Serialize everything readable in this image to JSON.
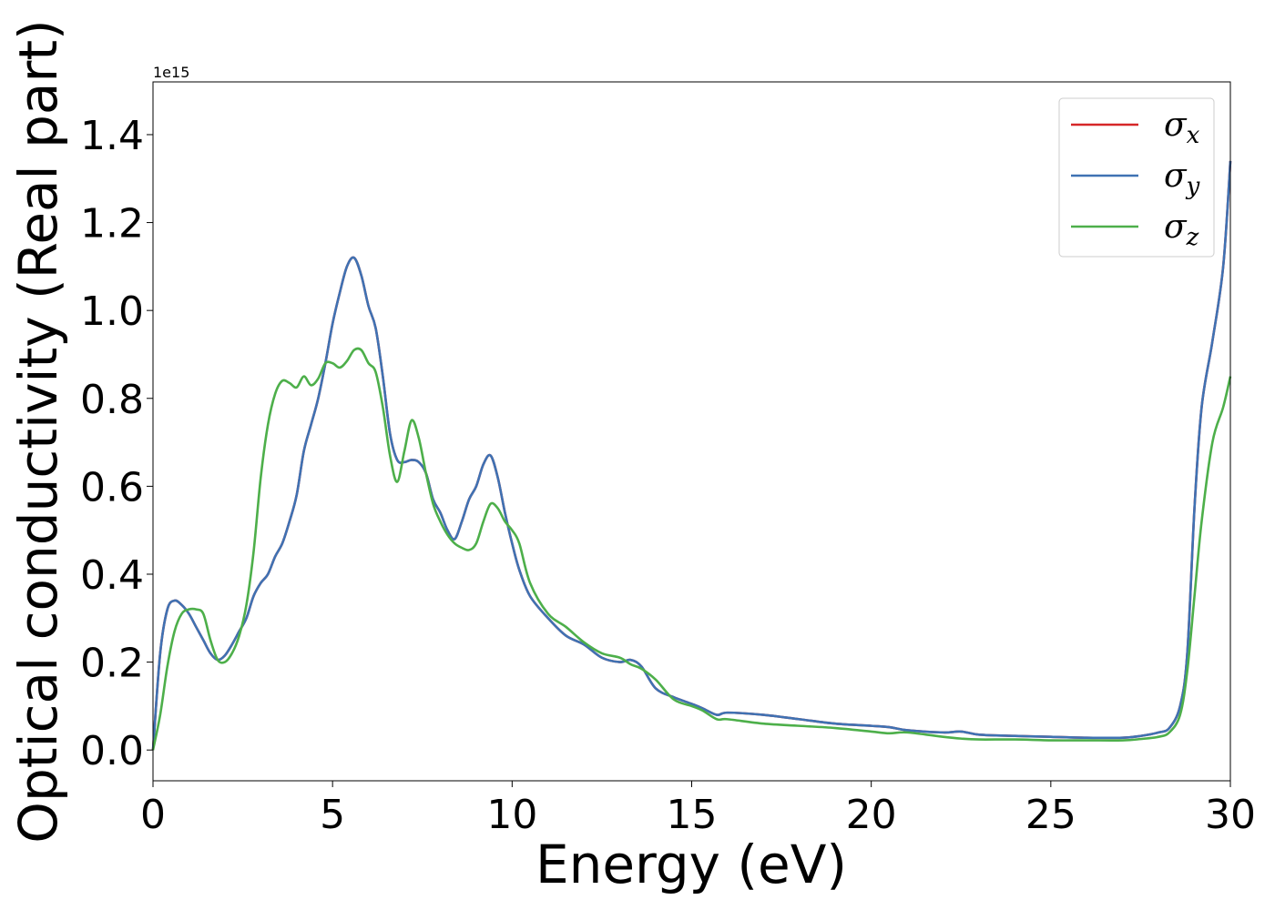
{
  "chart_data": {
    "type": "line",
    "xlabel": "Energy (eV)",
    "ylabel": "Optical conductivity (Real part)",
    "y_offset_label": "1e15",
    "xlim": [
      0,
      30
    ],
    "ylim": [
      -0.07,
      1.52
    ],
    "x_ticks": [
      0,
      5,
      10,
      15,
      20,
      25,
      30
    ],
    "y_ticks": [
      0.0,
      0.2,
      0.4,
      0.6,
      0.8,
      1.0,
      1.2,
      1.4
    ],
    "x_tick_labels": [
      "0",
      "5",
      "10",
      "15",
      "20",
      "25",
      "30"
    ],
    "y_tick_labels": [
      "0.0",
      "0.2",
      "0.4",
      "0.6",
      "0.8",
      "1.0",
      "1.2",
      "1.4"
    ],
    "grid": false,
    "legend_position": "top-right",
    "series": [
      {
        "name": "σx",
        "label_base": "σ",
        "label_sub": "x",
        "color": "#d62728",
        "x": [
          0,
          0.2,
          0.4,
          0.6,
          0.8,
          1.0,
          1.2,
          1.4,
          1.6,
          1.8,
          2.0,
          2.2,
          2.4,
          2.6,
          2.8,
          3.0,
          3.2,
          3.4,
          3.6,
          3.8,
          4.0,
          4.2,
          4.4,
          4.6,
          4.8,
          5.0,
          5.2,
          5.4,
          5.6,
          5.8,
          6.0,
          6.2,
          6.4,
          6.6,
          6.8,
          7.0,
          7.2,
          7.4,
          7.6,
          7.8,
          8.0,
          8.2,
          8.4,
          8.6,
          8.8,
          9.0,
          9.2,
          9.4,
          9.6,
          9.8,
          10.0,
          10.2,
          10.5,
          11.0,
          11.5,
          12.0,
          12.5,
          13.0,
          13.3,
          13.6,
          14.0,
          14.5,
          15.0,
          15.3,
          15.7,
          16.0,
          17.0,
          18.0,
          19.0,
          20.0,
          20.5,
          21.0,
          22.0,
          22.5,
          23.0,
          24.0,
          25.0,
          26.0,
          27.0,
          27.5,
          28.0,
          28.3,
          28.6,
          28.8,
          29.0,
          29.2,
          29.5,
          29.8,
          30.0
        ],
        "y": [
          0.0,
          0.22,
          0.32,
          0.34,
          0.33,
          0.31,
          0.28,
          0.25,
          0.22,
          0.205,
          0.215,
          0.24,
          0.27,
          0.3,
          0.35,
          0.38,
          0.4,
          0.44,
          0.47,
          0.52,
          0.58,
          0.68,
          0.74,
          0.8,
          0.88,
          0.97,
          1.04,
          1.1,
          1.12,
          1.08,
          1.01,
          0.96,
          0.85,
          0.72,
          0.66,
          0.655,
          0.66,
          0.655,
          0.63,
          0.57,
          0.54,
          0.5,
          0.48,
          0.52,
          0.57,
          0.6,
          0.65,
          0.67,
          0.62,
          0.54,
          0.47,
          0.41,
          0.35,
          0.3,
          0.26,
          0.24,
          0.21,
          0.2,
          0.205,
          0.19,
          0.14,
          0.12,
          0.105,
          0.095,
          0.08,
          0.085,
          0.08,
          0.07,
          0.06,
          0.055,
          0.052,
          0.045,
          0.04,
          0.042,
          0.035,
          0.032,
          0.03,
          0.028,
          0.028,
          0.032,
          0.04,
          0.05,
          0.1,
          0.22,
          0.55,
          0.78,
          0.93,
          1.1,
          1.34
        ]
      },
      {
        "name": "σy",
        "label_base": "σ",
        "label_sub": "y",
        "color": "#3f72b3",
        "x": [
          0,
          0.2,
          0.4,
          0.6,
          0.8,
          1.0,
          1.2,
          1.4,
          1.6,
          1.8,
          2.0,
          2.2,
          2.4,
          2.6,
          2.8,
          3.0,
          3.2,
          3.4,
          3.6,
          3.8,
          4.0,
          4.2,
          4.4,
          4.6,
          4.8,
          5.0,
          5.2,
          5.4,
          5.6,
          5.8,
          6.0,
          6.2,
          6.4,
          6.6,
          6.8,
          7.0,
          7.2,
          7.4,
          7.6,
          7.8,
          8.0,
          8.2,
          8.4,
          8.6,
          8.8,
          9.0,
          9.2,
          9.4,
          9.6,
          9.8,
          10.0,
          10.2,
          10.5,
          11.0,
          11.5,
          12.0,
          12.5,
          13.0,
          13.3,
          13.6,
          14.0,
          14.5,
          15.0,
          15.3,
          15.7,
          16.0,
          17.0,
          18.0,
          19.0,
          20.0,
          20.5,
          21.0,
          22.0,
          22.5,
          23.0,
          24.0,
          25.0,
          26.0,
          27.0,
          27.5,
          28.0,
          28.3,
          28.6,
          28.8,
          29.0,
          29.2,
          29.5,
          29.8,
          30.0
        ],
        "y": [
          0.0,
          0.22,
          0.32,
          0.34,
          0.33,
          0.31,
          0.28,
          0.25,
          0.22,
          0.205,
          0.215,
          0.24,
          0.27,
          0.3,
          0.35,
          0.38,
          0.4,
          0.44,
          0.47,
          0.52,
          0.58,
          0.68,
          0.74,
          0.8,
          0.88,
          0.97,
          1.04,
          1.1,
          1.12,
          1.08,
          1.01,
          0.96,
          0.85,
          0.72,
          0.66,
          0.655,
          0.66,
          0.655,
          0.63,
          0.57,
          0.54,
          0.5,
          0.48,
          0.52,
          0.57,
          0.6,
          0.65,
          0.67,
          0.62,
          0.54,
          0.47,
          0.41,
          0.35,
          0.3,
          0.26,
          0.24,
          0.21,
          0.2,
          0.205,
          0.19,
          0.14,
          0.12,
          0.105,
          0.095,
          0.08,
          0.085,
          0.08,
          0.07,
          0.06,
          0.055,
          0.052,
          0.045,
          0.04,
          0.042,
          0.035,
          0.032,
          0.03,
          0.028,
          0.028,
          0.032,
          0.04,
          0.05,
          0.1,
          0.22,
          0.55,
          0.78,
          0.93,
          1.1,
          1.34
        ]
      },
      {
        "name": "σz",
        "label_base": "σ",
        "label_sub": "z",
        "color": "#4daf4a",
        "x": [
          0,
          0.2,
          0.4,
          0.6,
          0.8,
          1.0,
          1.2,
          1.4,
          1.6,
          1.8,
          2.0,
          2.2,
          2.4,
          2.6,
          2.8,
          3.0,
          3.2,
          3.4,
          3.6,
          3.8,
          4.0,
          4.2,
          4.4,
          4.6,
          4.8,
          5.0,
          5.2,
          5.4,
          5.6,
          5.8,
          6.0,
          6.2,
          6.4,
          6.6,
          6.8,
          7.0,
          7.2,
          7.4,
          7.6,
          7.8,
          8.0,
          8.2,
          8.4,
          8.6,
          8.8,
          9.0,
          9.2,
          9.4,
          9.6,
          9.8,
          10.0,
          10.2,
          10.5,
          11.0,
          11.5,
          12.0,
          12.5,
          13.0,
          13.3,
          13.6,
          14.0,
          14.5,
          15.0,
          15.3,
          15.7,
          16.0,
          17.0,
          18.0,
          19.0,
          20.0,
          20.5,
          21.0,
          22.0,
          22.5,
          23.0,
          24.0,
          25.0,
          26.0,
          27.0,
          27.5,
          28.0,
          28.3,
          28.6,
          28.8,
          29.0,
          29.2,
          29.5,
          29.8,
          30.0
        ],
        "y": [
          0.0,
          0.08,
          0.19,
          0.27,
          0.31,
          0.32,
          0.32,
          0.31,
          0.25,
          0.205,
          0.2,
          0.22,
          0.26,
          0.33,
          0.45,
          0.62,
          0.74,
          0.81,
          0.84,
          0.835,
          0.825,
          0.85,
          0.83,
          0.845,
          0.88,
          0.88,
          0.87,
          0.885,
          0.91,
          0.91,
          0.88,
          0.86,
          0.78,
          0.67,
          0.61,
          0.68,
          0.75,
          0.71,
          0.63,
          0.56,
          0.52,
          0.49,
          0.47,
          0.46,
          0.455,
          0.47,
          0.52,
          0.56,
          0.55,
          0.52,
          0.5,
          0.47,
          0.38,
          0.31,
          0.28,
          0.245,
          0.22,
          0.21,
          0.195,
          0.185,
          0.16,
          0.115,
          0.1,
          0.09,
          0.07,
          0.07,
          0.06,
          0.055,
          0.05,
          0.042,
          0.038,
          0.04,
          0.03,
          0.026,
          0.024,
          0.024,
          0.022,
          0.022,
          0.022,
          0.025,
          0.03,
          0.04,
          0.08,
          0.18,
          0.35,
          0.52,
          0.7,
          0.78,
          0.85
        ]
      }
    ]
  }
}
